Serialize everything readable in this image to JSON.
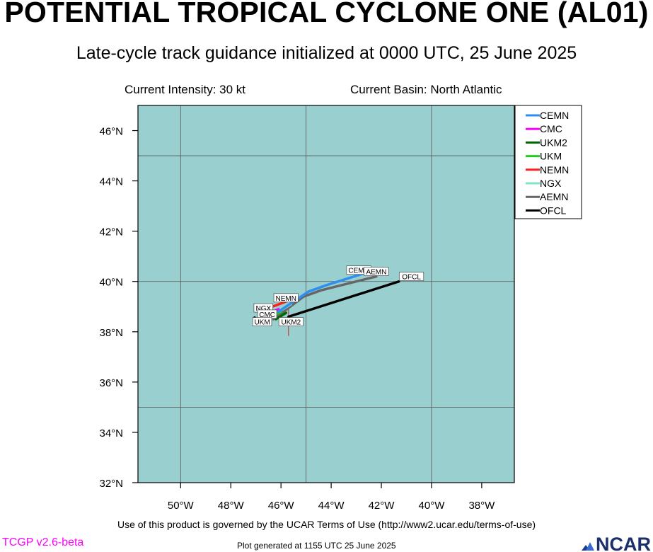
{
  "header": {
    "title": "POTENTIAL TROPICAL CYCLONE ONE (AL01)",
    "subtitle": "Late-cycle track guidance initialized at 0000 UTC, 25 June 2025",
    "intensity": "Current Intensity: 30 kt",
    "basin": "Current Basin: North Atlantic"
  },
  "map": {
    "lon_range": [
      -51.7,
      -36.7
    ],
    "lat_range": [
      32,
      47
    ],
    "ocean_color": "#99cfcf",
    "graticule_lon": [
      -50,
      -45,
      -40
    ],
    "graticule_lat": [
      35,
      40,
      45
    ],
    "x_ticks": [
      {
        "lon": -50,
        "label": "50°W"
      },
      {
        "lon": -48,
        "label": "48°W"
      },
      {
        "lon": -46,
        "label": "46°W"
      },
      {
        "lon": -44,
        "label": "44°W"
      },
      {
        "lon": -42,
        "label": "42°W"
      },
      {
        "lon": -40,
        "label": "40°W"
      },
      {
        "lon": -38,
        "label": "38°W"
      }
    ],
    "y_ticks": [
      {
        "lat": 32,
        "label": "32°N"
      },
      {
        "lat": 34,
        "label": "34°N"
      },
      {
        "lat": 36,
        "label": "36°N"
      },
      {
        "lat": 38,
        "label": "38°N"
      },
      {
        "lat": 40,
        "label": "40°N"
      },
      {
        "lat": 42,
        "label": "42°N"
      },
      {
        "lat": 44,
        "label": "44°N"
      },
      {
        "lat": 46,
        "label": "46°N"
      }
    ],
    "storm_position": {
      "lon": -45.7,
      "lat": 38.4
    }
  },
  "tracks": [
    {
      "name": "OFCL",
      "color": "#000000",
      "points": [
        [
          -45.7,
          38.6
        ],
        [
          -41.3,
          40.0
        ]
      ]
    },
    {
      "name": "AEMN",
      "color": "#666666",
      "points": [
        [
          -46.3,
          38.5
        ],
        [
          -45.1,
          39.4
        ],
        [
          -44.4,
          39.65
        ],
        [
          -42.2,
          40.2
        ]
      ]
    },
    {
      "name": "NGX",
      "color": "#7fe5c8",
      "points": [
        [
          -46.4,
          38.6
        ],
        [
          -45.6,
          39.1
        ]
      ]
    },
    {
      "name": "NEMN",
      "color": "#ff2020",
      "points": [
        [
          -46.6,
          38.9
        ],
        [
          -45.8,
          39.2
        ]
      ]
    },
    {
      "name": "UKM",
      "color": "#22cc22",
      "points": [
        [
          -46.5,
          38.55
        ],
        [
          -46.0,
          38.8
        ]
      ]
    },
    {
      "name": "UKM2",
      "color": "#006600",
      "points": [
        [
          -46.2,
          38.5
        ],
        [
          -45.8,
          38.75
        ]
      ]
    },
    {
      "name": "CMC",
      "color": "#ff00ff",
      "points": [
        [
          -46.5,
          38.7
        ],
        [
          -46.1,
          38.9
        ]
      ]
    },
    {
      "name": "CEMN",
      "color": "#2f8ef0",
      "points": [
        [
          -46.1,
          38.8
        ],
        [
          -44.9,
          39.6
        ],
        [
          -44.2,
          39.85
        ],
        [
          -42.6,
          40.35
        ]
      ]
    }
  ],
  "track_labels": [
    {
      "text": "CEMN",
      "lon": -42.9,
      "lat": 40.45
    },
    {
      "text": "AEMN",
      "lon": -42.2,
      "lat": 40.4
    },
    {
      "text": "OFCL",
      "lon": -40.8,
      "lat": 40.2
    },
    {
      "text": "NEMN",
      "lon": -45.8,
      "lat": 39.35
    },
    {
      "text": "NGX",
      "lon": -46.7,
      "lat": 38.95
    },
    {
      "text": "CMC",
      "lon": -46.55,
      "lat": 38.7
    },
    {
      "text": "UKM",
      "lon": -46.75,
      "lat": 38.4
    },
    {
      "text": "UKM2",
      "lon": -45.6,
      "lat": 38.4
    }
  ],
  "legend": [
    {
      "name": "CEMN",
      "color": "#2f8ef0"
    },
    {
      "name": "CMC",
      "color": "#ff00ff"
    },
    {
      "name": "UKM2",
      "color": "#006600"
    },
    {
      "name": "UKM",
      "color": "#22cc22"
    },
    {
      "name": "NEMN",
      "color": "#ff2020"
    },
    {
      "name": "NGX",
      "color": "#7fe5c8"
    },
    {
      "name": "AEMN",
      "color": "#666666"
    },
    {
      "name": "OFCL",
      "color": "#000000"
    }
  ],
  "footer": {
    "terms": "Use of this product is governed by the UCAR Terms of Use (http://www2.ucar.edu/terms-of-use)",
    "version": "TCGP v2.6-beta",
    "generated": "Plot generated at 1155 UTC   25 June 2025",
    "logo": "NCAR"
  }
}
